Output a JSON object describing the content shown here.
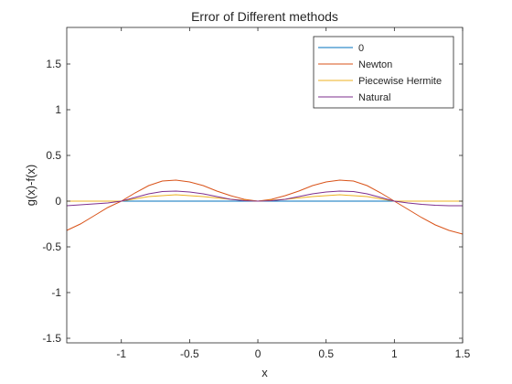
{
  "chart_data": {
    "type": "line",
    "title": "Error of Different methods",
    "xlabel": "x",
    "ylabel": "g(x)-f(x)",
    "xlim": [
      -1.4,
      1.5
    ],
    "ylim": [
      -1.55,
      1.9
    ],
    "xticks": [
      -1,
      -0.5,
      0,
      0.5,
      1,
      1.5
    ],
    "xtick_labels": [
      "-1",
      "-0.5",
      "0",
      "0.5",
      "1",
      "1.5"
    ],
    "yticks": [
      -1.5,
      -1,
      -0.5,
      0,
      0.5,
      1,
      1.5
    ],
    "ytick_labels": [
      "-1.5",
      "-1",
      "-0.5",
      "0",
      "0.5",
      "1",
      "1.5"
    ],
    "grid": false,
    "legend_position": "top-right",
    "series": [
      {
        "name": "0",
        "color": "#0072BD",
        "x": [
          -1.4,
          1.5
        ],
        "y": [
          0,
          0
        ]
      },
      {
        "name": "Newton",
        "color": "#D95319",
        "x": [
          -1.4,
          -1.3,
          -1.2,
          -1.1,
          -1.0,
          -0.9,
          -0.8,
          -0.7,
          -0.6,
          -0.5,
          -0.4,
          -0.3,
          -0.2,
          -0.1,
          0.0,
          0.1,
          0.2,
          0.3,
          0.4,
          0.5,
          0.6,
          0.7,
          0.8,
          0.9,
          1.0,
          1.1,
          1.2,
          1.3,
          1.4,
          1.5
        ],
        "y": [
          -0.32,
          -0.25,
          -0.16,
          -0.07,
          0.0,
          0.09,
          0.17,
          0.22,
          0.23,
          0.21,
          0.17,
          0.11,
          0.06,
          0.02,
          0.0,
          0.02,
          0.06,
          0.11,
          0.17,
          0.21,
          0.23,
          0.22,
          0.17,
          0.09,
          0.0,
          -0.09,
          -0.18,
          -0.26,
          -0.32,
          -0.36
        ]
      },
      {
        "name": "Piecewise Hermite",
        "color": "#EDB120",
        "x": [
          -1.4,
          -1.2,
          -1.0,
          -0.8,
          -0.6,
          -0.4,
          -0.2,
          0.0,
          0.2,
          0.4,
          0.6,
          0.8,
          1.0,
          1.2,
          1.4,
          1.5
        ],
        "y": [
          0.0,
          0.0,
          0.0,
          0.05,
          0.07,
          0.05,
          0.02,
          0.0,
          0.02,
          0.05,
          0.07,
          0.05,
          0.0,
          0.0,
          0.0,
          0.0
        ]
      },
      {
        "name": "Natural",
        "color": "#7E2F8E",
        "x": [
          -1.4,
          -1.3,
          -1.2,
          -1.1,
          -1.0,
          -0.9,
          -0.8,
          -0.7,
          -0.6,
          -0.5,
          -0.4,
          -0.3,
          -0.2,
          -0.1,
          0.0,
          0.1,
          0.2,
          0.3,
          0.4,
          0.5,
          0.6,
          0.7,
          0.8,
          0.9,
          1.0,
          1.1,
          1.2,
          1.3,
          1.4,
          1.5
        ],
        "y": [
          -0.05,
          -0.04,
          -0.03,
          -0.02,
          0.0,
          0.04,
          0.08,
          0.105,
          0.11,
          0.1,
          0.08,
          0.05,
          0.02,
          0.005,
          0.0,
          0.005,
          0.02,
          0.05,
          0.08,
          0.1,
          0.11,
          0.105,
          0.08,
          0.04,
          0.0,
          -0.02,
          -0.035,
          -0.045,
          -0.05,
          -0.05
        ]
      }
    ]
  }
}
